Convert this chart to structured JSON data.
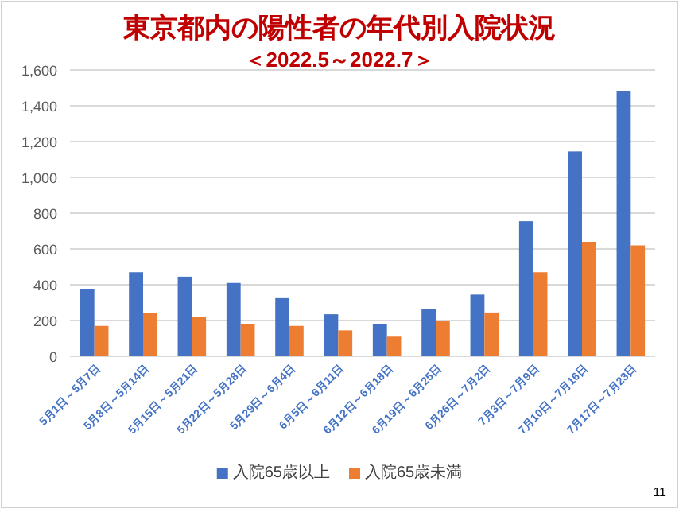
{
  "chart_data": {
    "type": "bar",
    "title": "東京都内の陽性者の年代別入院状況",
    "subtitle": "＜2022.5～2022.7＞",
    "categories": [
      "5月1日～5月7日",
      "5月8日～5月14日",
      "5月15日～5月21日",
      "5月22日～5月28日",
      "5月29日～6月4日",
      "6月5日～6月11日",
      "6月12日～6月18日",
      "6月19日～6月25日",
      "6月26日～7月2日",
      "7月3日～7月9日",
      "7月10日～7月16日",
      "7月17日～7月23日"
    ],
    "series": [
      {
        "name": "入院65歳以上",
        "color": "#4472c4",
        "values": [
          375,
          470,
          445,
          410,
          325,
          235,
          180,
          265,
          345,
          755,
          1145,
          1480
        ]
      },
      {
        "name": "入院65歳未満",
        "color": "#ed7d31",
        "values": [
          170,
          240,
          220,
          180,
          170,
          145,
          110,
          200,
          245,
          470,
          640,
          620
        ]
      }
    ],
    "ylim": [
      0,
      1600
    ],
    "yticks": [
      {
        "value": 0,
        "label": "0"
      },
      {
        "value": 200,
        "label": "200"
      },
      {
        "value": 400,
        "label": "400"
      },
      {
        "value": 600,
        "label": "600"
      },
      {
        "value": 800,
        "label": "800"
      },
      {
        "value": 1000,
        "label": "1,000"
      },
      {
        "value": 1200,
        "label": "1,200"
      },
      {
        "value": 1400,
        "label": "1,400"
      },
      {
        "value": 1600,
        "label": "1,600"
      }
    ],
    "grid": "y",
    "legend": "bottom",
    "annotations": [
      "11"
    ]
  }
}
